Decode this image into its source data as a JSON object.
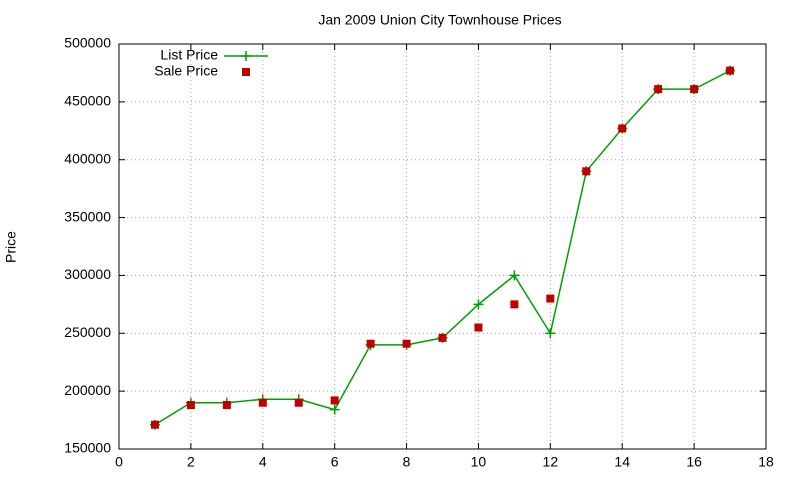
{
  "chart_data": {
    "type": "line",
    "title": "Jan 2009 Union City Townhouse Prices",
    "y_label": "Price",
    "x": [
      1,
      2,
      3,
      4,
      5,
      6,
      7,
      8,
      9,
      10,
      11,
      12,
      13,
      14,
      15,
      16,
      17
    ],
    "series": [
      {
        "name": "List Price",
        "color": "#00a000",
        "mode": "linespoints",
        "values": [
          171000,
          190000,
          190000,
          193000,
          193000,
          184000,
          240000,
          240000,
          246000,
          275000,
          300000,
          250000,
          390000,
          427000,
          461000,
          461000,
          477000
        ]
      },
      {
        "name": "Sale Price",
        "color": "#c00000",
        "mode": "points",
        "values": [
          171000,
          188000,
          188000,
          190000,
          190000,
          192000,
          241000,
          241000,
          246000,
          255000,
          275000,
          280000,
          390000,
          427000,
          461000,
          461000,
          477000
        ]
      }
    ],
    "xlim": [
      0,
      18
    ],
    "xticks": [
      0,
      2,
      4,
      6,
      8,
      10,
      12,
      14,
      16,
      18
    ],
    "ylim": [
      150000,
      500000
    ],
    "yticks": [
      150000,
      200000,
      250000,
      300000,
      350000,
      400000,
      450000,
      500000
    ],
    "grid": true,
    "legend": "top-left"
  }
}
